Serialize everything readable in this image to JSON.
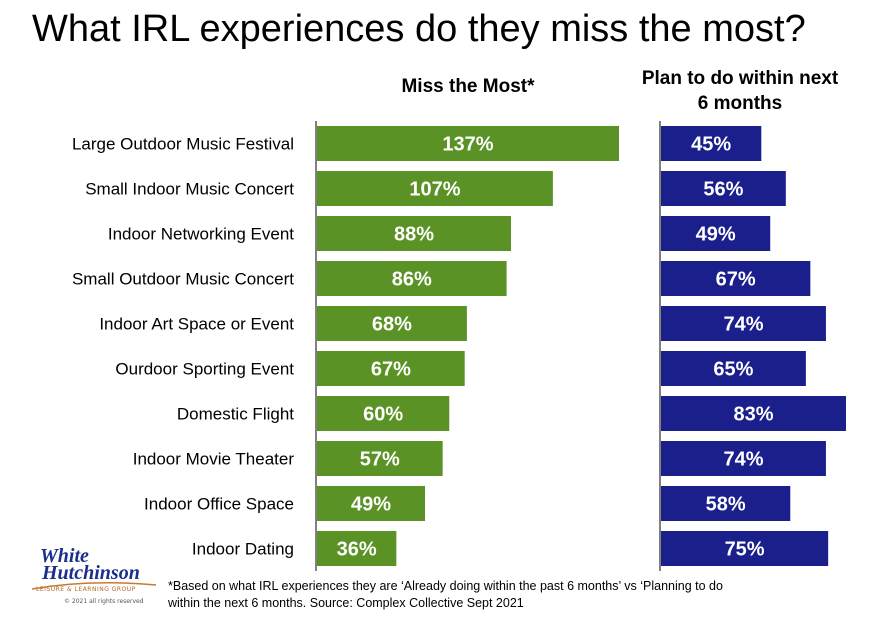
{
  "title": "What IRL experiences do they miss the most?",
  "chart_data": {
    "type": "bar",
    "categories": [
      "Large Outdoor Music Festival",
      "Small Indoor Music Concert",
      "Indoor Networking Event",
      "Small Outdoor Music Concert",
      "Indoor Art Space or Event",
      "Ourdoor Sporting Event",
      "Domestic Flight",
      "Indoor Movie Theater",
      "Indoor Office Space",
      "Indoor Dating"
    ],
    "series": [
      {
        "name": "Miss the Most*",
        "values": [
          137,
          107,
          88,
          86,
          68,
          67,
          60,
          57,
          49,
          36
        ],
        "color": "#5a9226"
      },
      {
        "name": "Plan to do within next 6 months",
        "values": [
          45,
          56,
          49,
          67,
          74,
          65,
          83,
          74,
          58,
          75
        ],
        "color": "#1a1f8c"
      }
    ],
    "value_suffix": "%",
    "orientation": "horizontal"
  },
  "footnote_line1": "*Based on what IRL experiences they are ‘Already doing within the past 6 months’ vs ‘Planning to do",
  "footnote_line2": "within the next 6 months. Source: Complex Collective Sept 2021",
  "logo": {
    "line1": "White",
    "line2": "Hutchinson",
    "tagline": "LEISURE & LEARNING GROUP",
    "copyright": "© 2021 all rights reserved"
  }
}
